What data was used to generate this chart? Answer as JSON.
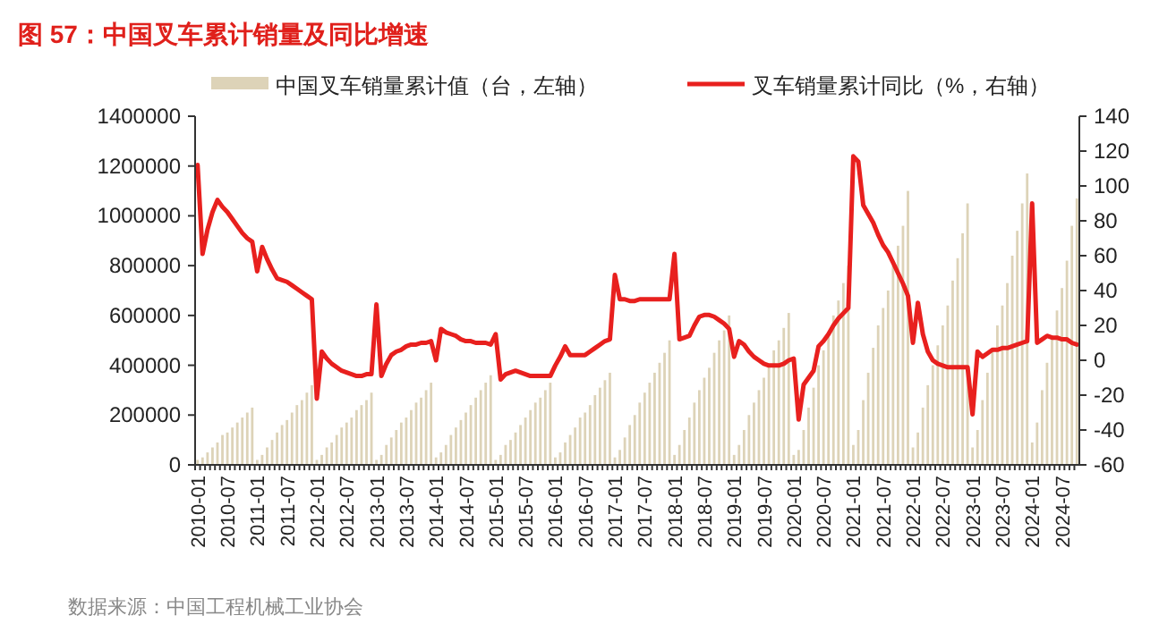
{
  "chart_data": {
    "type": "bar",
    "title": "图 57：中国叉车累计销量及同比增速",
    "legend": "top",
    "annotations": [
      "数据来源：中国工程机械工业协会"
    ],
    "categories": [
      "2010-01",
      null,
      null,
      null,
      null,
      null,
      "2010-07",
      null,
      null,
      null,
      null,
      null,
      "2011-01",
      null,
      null,
      null,
      null,
      null,
      "2011-07",
      null,
      null,
      null,
      null,
      null,
      "2012-01",
      null,
      null,
      null,
      null,
      null,
      "2012-07",
      null,
      null,
      null,
      null,
      null,
      "2013-01",
      null,
      null,
      null,
      null,
      null,
      "2013-07",
      null,
      null,
      null,
      null,
      null,
      "2014-01",
      null,
      null,
      null,
      null,
      null,
      "2014-07",
      null,
      null,
      null,
      null,
      null,
      "2015-01",
      null,
      null,
      null,
      null,
      null,
      "2015-07",
      null,
      null,
      null,
      null,
      null,
      "2016-01",
      null,
      null,
      null,
      null,
      null,
      "2016-07",
      null,
      null,
      null,
      null,
      null,
      "2017-01",
      null,
      null,
      null,
      null,
      null,
      "2017-07",
      null,
      null,
      null,
      null,
      null,
      "2018-01",
      null,
      null,
      null,
      null,
      null,
      "2018-07",
      null,
      null,
      null,
      null,
      null,
      "2019-01",
      null,
      null,
      null,
      null,
      null,
      "2019-07",
      null,
      null,
      null,
      null,
      null,
      "2020-01",
      null,
      null,
      null,
      null,
      null,
      "2020-07",
      null,
      null,
      null,
      null,
      null,
      "2021-01",
      null,
      null,
      null,
      null,
      null,
      "2021-07",
      null,
      null,
      null,
      null,
      null,
      "2022-01",
      null,
      null,
      null,
      null,
      null,
      "2022-07",
      null,
      null,
      null,
      null,
      null,
      "2023-01",
      null,
      null,
      null,
      null,
      null,
      "2023-07",
      null,
      null,
      null,
      null,
      null,
      "2024-01",
      null,
      null,
      null,
      null,
      null,
      "2024-07",
      null,
      null,
      null
    ],
    "series": [
      {
        "name": "中国叉车销量累计值（台，左轴）",
        "color": "#ddd3b8",
        "values": [
          20000,
          30000,
          50000,
          70000,
          90000,
          120000,
          130000,
          150000,
          170000,
          190000,
          210000,
          230000,
          20000,
          40000,
          70000,
          100000,
          130000,
          160000,
          180000,
          210000,
          240000,
          260000,
          290000,
          320000,
          20000,
          40000,
          70000,
          90000,
          120000,
          150000,
          170000,
          190000,
          220000,
          240000,
          260000,
          290000,
          20000,
          40000,
          80000,
          110000,
          140000,
          170000,
          190000,
          220000,
          250000,
          270000,
          300000,
          330000,
          30000,
          50000,
          80000,
          120000,
          150000,
          180000,
          210000,
          240000,
          270000,
          300000,
          330000,
          360000,
          20000,
          40000,
          80000,
          100000,
          130000,
          160000,
          190000,
          220000,
          250000,
          270000,
          300000,
          330000,
          30000,
          50000,
          90000,
          120000,
          150000,
          190000,
          210000,
          240000,
          280000,
          310000,
          340000,
          370000,
          30000,
          60000,
          110000,
          160000,
          200000,
          250000,
          290000,
          330000,
          370000,
          410000,
          450000,
          500000,
          40000,
          80000,
          140000,
          190000,
          250000,
          300000,
          350000,
          390000,
          450000,
          500000,
          540000,
          600000,
          40000,
          80000,
          140000,
          200000,
          250000,
          300000,
          350000,
          400000,
          460000,
          500000,
          550000,
          610000,
          40000,
          60000,
          140000,
          230000,
          310000,
          400000,
          460000,
          520000,
          600000,
          660000,
          730000,
          800000,
          80000,
          140000,
          260000,
          370000,
          470000,
          560000,
          630000,
          700000,
          800000,
          880000,
          960000,
          1100000,
          70000,
          130000,
          230000,
          320000,
          400000,
          480000,
          560000,
          640000,
          740000,
          830000,
          930000,
          1050000,
          70000,
          140000,
          260000,
          370000,
          460000,
          560000,
          640000,
          730000,
          840000,
          940000,
          1050000,
          1170000,
          90000,
          170000,
          300000,
          410000,
          520000,
          620000,
          710000,
          820000,
          960000,
          1070000
        ]
      },
      {
        "type": "line",
        "axis": "y2",
        "name": "叉车销量累计同比（%，右轴）",
        "color": "#e8201e",
        "values": [
          112,
          61,
          75,
          85,
          92,
          88,
          85,
          81,
          77,
          73,
          70,
          68,
          51,
          65,
          58,
          52,
          47,
          46,
          45,
          43,
          41,
          39,
          37,
          35,
          -22,
          5,
          1,
          -2,
          -4,
          -6,
          -7,
          -8,
          -9,
          -9,
          -8,
          -8,
          32,
          -9,
          -2,
          3,
          5,
          6,
          8,
          9,
          9,
          10,
          10,
          11,
          0,
          18,
          16,
          15,
          14,
          12,
          11,
          11,
          10,
          10,
          10,
          9,
          15,
          -11,
          -8,
          -7,
          -6,
          -7,
          -8,
          -9,
          -9,
          -9,
          -9,
          -9,
          -3,
          2,
          8,
          3,
          3,
          3,
          3,
          5,
          7,
          9,
          11,
          12,
          49,
          35,
          35,
          34,
          34,
          35,
          35,
          35,
          35,
          35,
          35,
          35,
          61,
          12,
          13,
          14,
          20,
          25,
          26,
          26,
          25,
          23,
          21,
          18,
          2,
          11,
          9,
          5,
          2,
          0,
          -2,
          -3,
          -3,
          -3,
          -2,
          0,
          1,
          -34,
          -14,
          -10,
          -6,
          8,
          11,
          15,
          20,
          24,
          27,
          30,
          117,
          114,
          89,
          84,
          79,
          72,
          66,
          62,
          56,
          50,
          44,
          37,
          10,
          33,
          15,
          5,
          0,
          -2,
          -3,
          -4,
          -4,
          -4,
          -4,
          -4,
          -31,
          5,
          2,
          4,
          6,
          6,
          7,
          7,
          8,
          9,
          10,
          11,
          90,
          10,
          12,
          14,
          13,
          13,
          12,
          12,
          10,
          9
        ]
      }
    ],
    "ylim": [
      0,
      1400000
    ],
    "yticks": [
      0,
      200000,
      400000,
      600000,
      800000,
      1000000,
      1200000,
      1400000
    ],
    "y2lim": [
      -60,
      140
    ],
    "y2ticks": [
      -60,
      -40,
      -20,
      0,
      20,
      40,
      60,
      80,
      100,
      120,
      140
    ]
  }
}
